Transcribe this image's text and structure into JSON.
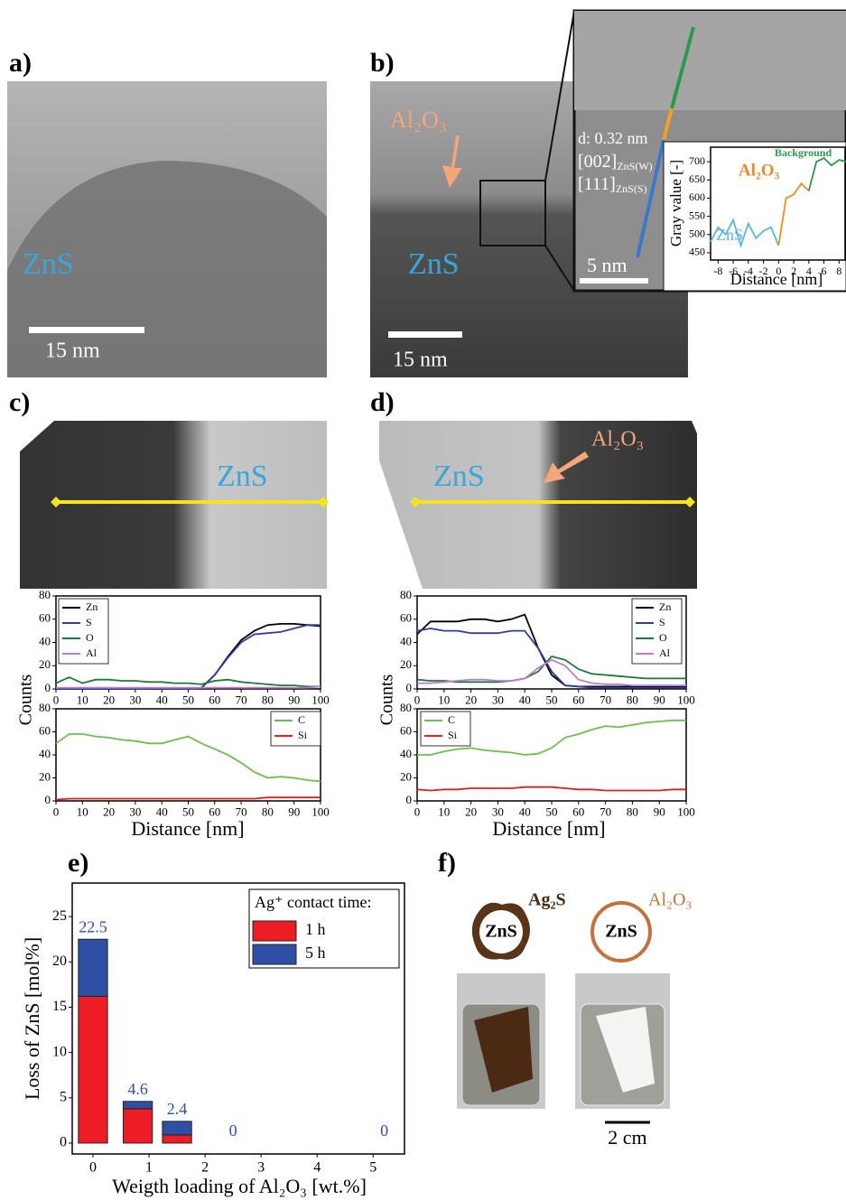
{
  "panels": {
    "a": {
      "label": "a)",
      "material": "ZnS",
      "scale": "15 nm"
    },
    "b": {
      "label": "b)",
      "layer": "Al₂O₃",
      "material": "ZnS",
      "scale": "15 nm",
      "inset_scale": "5 nm",
      "spacing": "d: 0.32 nm",
      "plane_1": {
        "index": "[002]",
        "phase": "ZnS(W)"
      },
      "plane_2": {
        "index": "[111]",
        "phase": "ZnS(S)"
      }
    },
    "c": {
      "label": "c)",
      "material": "ZnS"
    },
    "d": {
      "label": "d)",
      "material": "ZnS",
      "layer": "Al₂O₃"
    },
    "e": {
      "label": "e)"
    },
    "f": {
      "label": "f)",
      "core_1": "ZnS",
      "shell_1": "Ag₂S",
      "core_2": "ZnS",
      "shell_2": "Al₂O₃",
      "scale": "2 cm"
    }
  },
  "chart_data": [
    {
      "type": "line",
      "xlabel": "Distance [nm]",
      "ylabel": "Gray value [-]",
      "x": [
        -9,
        -8,
        -7,
        -6,
        -5,
        -4,
        -3,
        -2,
        -1,
        0,
        1,
        2,
        3,
        4,
        5,
        6,
        7,
        8,
        9
      ],
      "series": [
        {
          "name": "ZnS",
          "color": "#5ab4e6",
          "values": [
            480,
            520,
            500,
            540,
            470,
            530,
            490,
            510,
            520,
            470,
            null,
            null,
            null,
            null,
            null,
            null,
            null,
            null,
            null
          ]
        },
        {
          "name": "Al₂O₃",
          "color": "#f08a24",
          "values": [
            null,
            null,
            null,
            null,
            null,
            null,
            null,
            null,
            null,
            470,
            600,
            610,
            640,
            620,
            null,
            null,
            null,
            null,
            null
          ]
        },
        {
          "name": "Background",
          "color": "#2a9a4a",
          "values": [
            null,
            null,
            null,
            null,
            null,
            null,
            null,
            null,
            null,
            null,
            null,
            null,
            null,
            620,
            700,
            710,
            690,
            705,
            700
          ]
        }
      ],
      "xlim": [
        -9,
        8.8
      ],
      "ylim": [
        430,
        740
      ],
      "xticks": [
        -8,
        -6,
        -4,
        -2,
        0,
        2,
        4,
        6,
        8
      ],
      "yticks": [
        450,
        500,
        550,
        600,
        650,
        700
      ]
    },
    {
      "type": "line",
      "ylabel": "Counts",
      "x": [
        0,
        5,
        10,
        15,
        20,
        25,
        30,
        35,
        40,
        45,
        50,
        55,
        60,
        65,
        70,
        75,
        80,
        85,
        90,
        95,
        100
      ],
      "series": [
        {
          "name": "Zn",
          "color": "#000000",
          "values": [
            0,
            0,
            0,
            0,
            0,
            0,
            0,
            0,
            0,
            0,
            0,
            1,
            12,
            28,
            42,
            50,
            55,
            56,
            56,
            55,
            54
          ]
        },
        {
          "name": "S",
          "color": "#2b3f9c",
          "values": [
            0,
            0,
            0,
            0,
            0,
            0,
            0,
            0,
            0,
            0,
            0,
            1,
            12,
            27,
            40,
            47,
            48,
            49,
            52,
            55,
            55
          ]
        },
        {
          "name": "O",
          "color": "#1a7a3a",
          "values": [
            5,
            10,
            5,
            8,
            8,
            7,
            7,
            6,
            6,
            5,
            5,
            4,
            7,
            8,
            6,
            5,
            4,
            3,
            3,
            2,
            2
          ]
        },
        {
          "name": "Al",
          "color": "#c47ac7",
          "values": [
            1,
            1,
            1,
            1,
            1,
            1,
            1,
            1,
            1,
            1,
            1,
            1,
            1,
            1,
            1,
            1,
            1,
            1,
            1,
            1,
            2
          ]
        }
      ],
      "xlim": [
        0,
        100
      ],
      "ylim": [
        0,
        80
      ],
      "xticks": [
        0,
        10,
        20,
        30,
        40,
        50,
        60,
        70,
        80,
        90,
        100
      ],
      "yticks": [
        0,
        20,
        40,
        60,
        80
      ]
    },
    {
      "type": "line",
      "xlabel": "Distance [nm]",
      "x": [
        0,
        5,
        10,
        15,
        20,
        25,
        30,
        35,
        40,
        45,
        50,
        55,
        60,
        65,
        70,
        75,
        80,
        85,
        90,
        95,
        100
      ],
      "series": [
        {
          "name": "C",
          "color": "#6cc04a",
          "values": [
            50,
            58,
            58,
            56,
            55,
            53,
            52,
            50,
            50,
            53,
            56,
            50,
            45,
            40,
            33,
            25,
            20,
            21,
            20,
            18,
            17
          ]
        },
        {
          "name": "Si",
          "color": "#e02020",
          "values": [
            1,
            2,
            2,
            2,
            2,
            2,
            2,
            2,
            2,
            2,
            2,
            2,
            2,
            2,
            2,
            2,
            3,
            3,
            3,
            3,
            3
          ]
        }
      ],
      "xlim": [
        0,
        100
      ],
      "ylim": [
        0,
        80
      ],
      "xticks": [
        0,
        10,
        20,
        30,
        40,
        50,
        60,
        70,
        80,
        90,
        100
      ],
      "yticks": [
        0,
        20,
        40,
        60,
        80
      ]
    },
    {
      "type": "line",
      "ylabel": "Counts",
      "x": [
        0,
        5,
        10,
        15,
        20,
        25,
        30,
        35,
        40,
        45,
        50,
        55,
        60,
        65,
        70,
        75,
        80,
        85,
        90,
        95,
        100
      ],
      "series": [
        {
          "name": "Zn",
          "color": "#000000",
          "values": [
            47,
            58,
            58,
            58,
            60,
            60,
            58,
            60,
            64,
            35,
            12,
            3,
            2,
            2,
            2,
            2,
            2,
            2,
            2,
            2,
            2
          ]
        },
        {
          "name": "S",
          "color": "#2b3f9c",
          "values": [
            50,
            52,
            50,
            50,
            48,
            48,
            48,
            50,
            50,
            35,
            15,
            3,
            2,
            1,
            1,
            1,
            1,
            1,
            1,
            1,
            1
          ]
        },
        {
          "name": "O",
          "color": "#1a7a3a",
          "values": [
            8,
            7,
            7,
            6,
            6,
            6,
            6,
            7,
            9,
            15,
            28,
            25,
            17,
            13,
            12,
            11,
            10,
            9,
            9,
            9,
            9
          ]
        },
        {
          "name": "Al",
          "color": "#c47ac7",
          "values": [
            5,
            5,
            6,
            7,
            8,
            8,
            7,
            7,
            9,
            18,
            25,
            20,
            8,
            5,
            4,
            4,
            3,
            3,
            3,
            3,
            3
          ]
        }
      ],
      "xlim": [
        0,
        100
      ],
      "ylim": [
        0,
        80
      ],
      "xticks": [
        0,
        10,
        20,
        30,
        40,
        50,
        60,
        70,
        80,
        90,
        100
      ],
      "yticks": [
        0,
        20,
        40,
        60,
        80
      ]
    },
    {
      "type": "line",
      "xlabel": "Distance [nm]",
      "x": [
        0,
        5,
        10,
        15,
        20,
        25,
        30,
        35,
        40,
        45,
        50,
        55,
        60,
        65,
        70,
        75,
        80,
        85,
        90,
        95,
        100
      ],
      "series": [
        {
          "name": "C",
          "color": "#6cc04a",
          "values": [
            40,
            40,
            43,
            45,
            46,
            44,
            43,
            42,
            40,
            41,
            46,
            55,
            58,
            62,
            65,
            64,
            66,
            68,
            69,
            70,
            70
          ]
        },
        {
          "name": "Si",
          "color": "#e02020",
          "values": [
            10,
            9,
            10,
            10,
            11,
            11,
            11,
            11,
            12,
            12,
            12,
            11,
            10,
            10,
            9,
            9,
            9,
            9,
            9,
            10,
            10
          ]
        }
      ],
      "xlim": [
        0,
        100
      ],
      "ylim": [
        0,
        80
      ],
      "xticks": [
        0,
        10,
        20,
        30,
        40,
        50,
        60,
        70,
        80,
        90,
        100
      ],
      "yticks": [
        0,
        20,
        40,
        60,
        80
      ]
    },
    {
      "type": "bar",
      "xlabel": "Weigth loading of Al₂O₃ [wt.%]",
      "ylabel": "Loss of ZnS [mol%]",
      "legend_title": "Ag⁺ contact time:",
      "x": [
        0,
        0.8,
        1.5,
        2.5,
        5.2
      ],
      "series": [
        {
          "name": "1 h",
          "color": "#ee1c25",
          "values": [
            16.2,
            3.8,
            0.9,
            0,
            0
          ]
        },
        {
          "name": "5 h",
          "color": "#2e4fa3",
          "values": [
            6.3,
            0.8,
            1.5,
            0,
            0
          ]
        }
      ],
      "totals": [
        22.5,
        4.6,
        2.4,
        0,
        0
      ],
      "xlim": [
        -0.37,
        5.56
      ],
      "ylim": [
        -1.2,
        28.7
      ],
      "xticks": [
        0,
        1,
        2,
        3,
        4,
        5
      ],
      "yticks": [
        0,
        5,
        10,
        15,
        20,
        25
      ]
    }
  ]
}
